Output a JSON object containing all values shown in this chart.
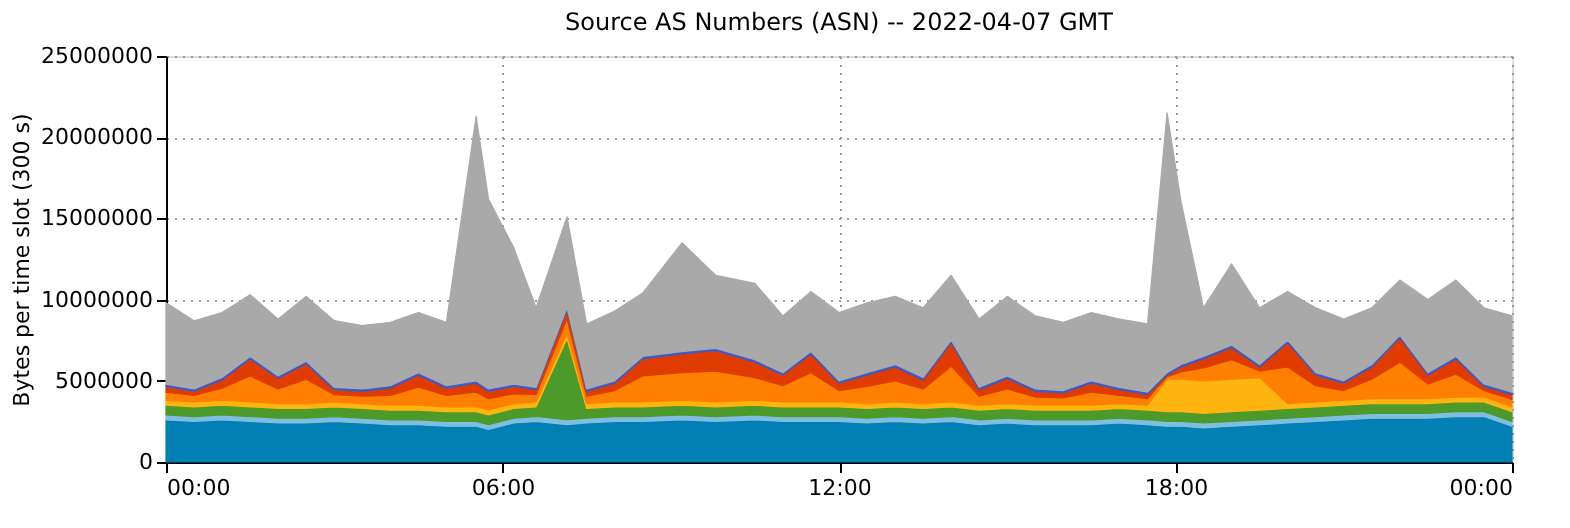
{
  "chart_data": {
    "type": "area",
    "stacked": true,
    "title": "Source AS Numbers (ASN) -- 2022-04-07 GMT",
    "ylabel": "Bytes per time slot (300 s)",
    "x": [
      0,
      0.5,
      1,
      1.5,
      2,
      2.5,
      3,
      3.5,
      4,
      4.5,
      5,
      5.53,
      5.75,
      6.2,
      6.6,
      7.15,
      7.5,
      8,
      8.5,
      9.2,
      9.8,
      10.5,
      11,
      11.5,
      12,
      12.5,
      13,
      13.5,
      14,
      14.5,
      15,
      15.5,
      16,
      16.5,
      17,
      17.5,
      17.85,
      18.1,
      18.5,
      19,
      19.5,
      20,
      20.5,
      21,
      21.5,
      22,
      22.5,
      23,
      23.5,
      24
    ],
    "xlim": [
      0,
      24
    ],
    "xticks": [
      {
        "value": 0,
        "label": "00:00"
      },
      {
        "value": 6,
        "label": "06:00"
      },
      {
        "value": 12,
        "label": "12:00"
      },
      {
        "value": 18,
        "label": "18:00"
      },
      {
        "value": 24,
        "label": "00:00"
      }
    ],
    "ylim": [
      0,
      25000000
    ],
    "yticks": [
      0,
      5000000,
      10000000,
      15000000,
      20000000,
      25000000
    ],
    "grid": true,
    "legend": false,
    "series": [
      {
        "color": "#0080b4",
        "values": [
          2600000,
          2500000,
          2600000,
          2500000,
          2400000,
          2400000,
          2500000,
          2400000,
          2300000,
          2300000,
          2200000,
          2200000,
          2000000,
          2400000,
          2500000,
          2300000,
          2400000,
          2500000,
          2500000,
          2600000,
          2500000,
          2600000,
          2500000,
          2500000,
          2500000,
          2400000,
          2500000,
          2400000,
          2500000,
          2300000,
          2400000,
          2300000,
          2300000,
          2300000,
          2400000,
          2300000,
          2200000,
          2200000,
          2100000,
          2200000,
          2300000,
          2400000,
          2500000,
          2600000,
          2700000,
          2700000,
          2700000,
          2800000,
          2800000,
          2200000
        ]
      },
      {
        "color": "#80bde0",
        "values": [
          300000,
          300000,
          300000,
          300000,
          300000,
          300000,
          300000,
          300000,
          300000,
          300000,
          300000,
          300000,
          300000,
          300000,
          300000,
          300000,
          300000,
          300000,
          300000,
          300000,
          300000,
          300000,
          300000,
          300000,
          300000,
          300000,
          300000,
          300000,
          300000,
          300000,
          300000,
          300000,
          300000,
          300000,
          300000,
          300000,
          300000,
          300000,
          300000,
          300000,
          300000,
          300000,
          300000,
          300000,
          300000,
          300000,
          300000,
          300000,
          300000,
          300000
        ]
      },
      {
        "color": "#4c9a2a",
        "values": [
          600000,
          600000,
          600000,
          600000,
          600000,
          600000,
          600000,
          600000,
          600000,
          600000,
          600000,
          600000,
          600000,
          600000,
          600000,
          5000000,
          600000,
          600000,
          600000,
          600000,
          600000,
          600000,
          600000,
          600000,
          600000,
          600000,
          600000,
          600000,
          600000,
          600000,
          600000,
          600000,
          600000,
          600000,
          600000,
          600000,
          600000,
          600000,
          600000,
          600000,
          600000,
          600000,
          600000,
          600000,
          600000,
          600000,
          600000,
          600000,
          600000,
          600000
        ]
      },
      {
        "color": "#ffb40f",
        "values": [
          300000,
          300000,
          300000,
          300000,
          300000,
          300000,
          300000,
          300000,
          300000,
          300000,
          300000,
          300000,
          300000,
          300000,
          300000,
          300000,
          300000,
          300000,
          300000,
          300000,
          300000,
          300000,
          300000,
          300000,
          300000,
          300000,
          300000,
          300000,
          300000,
          300000,
          300000,
          300000,
          300000,
          300000,
          300000,
          300000,
          2000000,
          2000000,
          2000000,
          2000000,
          2000000,
          300000,
          300000,
          300000,
          300000,
          300000,
          300000,
          300000,
          300000,
          300000
        ]
      },
      {
        "color": "#ff8000",
        "values": [
          500000,
          400000,
          750000,
          1600000,
          900000,
          1500000,
          450000,
          450000,
          600000,
          1100000,
          700000,
          900000,
          700000,
          600000,
          450000,
          900000,
          450000,
          700000,
          1600000,
          1700000,
          1900000,
          1400000,
          1000000,
          1800000,
          700000,
          1050000,
          1300000,
          900000,
          2200000,
          550000,
          900000,
          500000,
          450000,
          800000,
          500000,
          400000,
          150000,
          450000,
          800000,
          1200000,
          400000,
          2250000,
          1000000,
          600000,
          1200000,
          2250000,
          900000,
          1400000,
          400000,
          450000
        ]
      },
      {
        "color": "#e03c00",
        "values": [
          350000,
          250000,
          500000,
          1050000,
          650000,
          950000,
          300000,
          300000,
          450000,
          750000,
          450000,
          550000,
          450000,
          450000,
          300000,
          550000,
          300000,
          450000,
          1050000,
          1150000,
          1250000,
          950000,
          650000,
          1150000,
          450000,
          700000,
          850000,
          550000,
          1450000,
          400000,
          650000,
          350000,
          300000,
          550000,
          350000,
          250000,
          100000,
          300000,
          550000,
          750000,
          250000,
          1500000,
          650000,
          450000,
          750000,
          1500000,
          550000,
          950000,
          250000,
          300000
        ]
      },
      {
        "color": "#3c5ac8",
        "values": [
          150000,
          150000,
          150000,
          150000,
          150000,
          150000,
          150000,
          150000,
          150000,
          150000,
          150000,
          150000,
          150000,
          150000,
          150000,
          150000,
          150000,
          150000,
          150000,
          150000,
          150000,
          150000,
          150000,
          150000,
          150000,
          150000,
          150000,
          150000,
          150000,
          150000,
          150000,
          150000,
          150000,
          150000,
          150000,
          150000,
          150000,
          150000,
          150000,
          150000,
          150000,
          150000,
          150000,
          150000,
          150000,
          150000,
          150000,
          150000,
          150000,
          150000
        ]
      },
      {
        "color": "#a9a9a9",
        "values": [
          5000000,
          4200000,
          4000000,
          3800000,
          3500000,
          4000000,
          4100000,
          3900000,
          3900000,
          3700000,
          3900000,
          16300000,
          11700000,
          8400000,
          4900000,
          5600000,
          4000000,
          4300000,
          3900000,
          6700000,
          4500000,
          4700000,
          3500000,
          3700000,
          4200000,
          4300000,
          4200000,
          4300000,
          4000000,
          4200000,
          4900000,
          4500000,
          4200000,
          4200000,
          4200000,
          4200000,
          16000000,
          10000000,
          3000000,
          5000000,
          3500000,
          3000000,
          4000000,
          3800000,
          3500000,
          3400000,
          4500000,
          4700000,
          4700000,
          4700000
        ]
      }
    ]
  }
}
